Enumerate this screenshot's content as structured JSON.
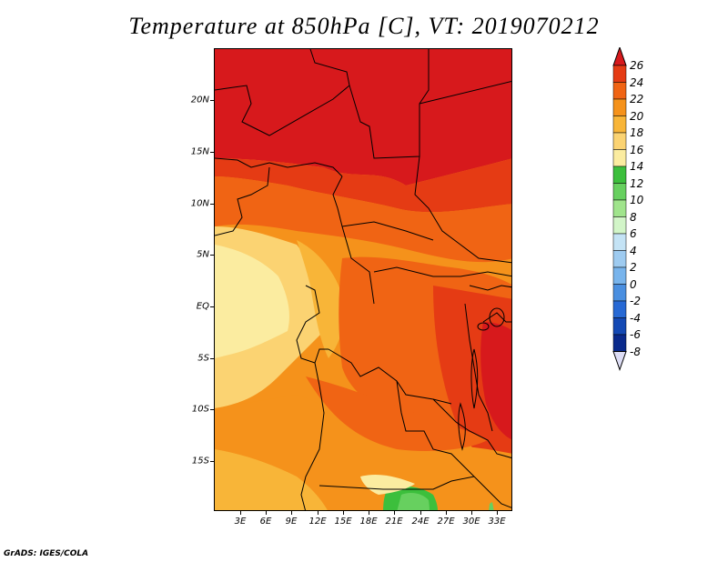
{
  "title": "Temperature at 850hPa [C], VT: 2019070212",
  "credit": "GrADS: IGES/COLA",
  "lat_labels": [
    "20N",
    "15N",
    "10N",
    "5N",
    "EQ",
    "5S",
    "10S",
    "15S"
  ],
  "lon_labels": [
    "3E",
    "6E",
    "9E",
    "12E",
    "15E",
    "18E",
    "21E",
    "24E",
    "27E",
    "30E",
    "33E"
  ],
  "colorbar": {
    "labels": [
      "26",
      "24",
      "22",
      "20",
      "18",
      "16",
      "14",
      "12",
      "10",
      "8",
      "6",
      "4",
      "2",
      "0",
      "-2",
      "-4",
      "-6",
      "-8"
    ],
    "colors": [
      "#d7191c",
      "#e53b14",
      "#f06414",
      "#f5921b",
      "#f8b538",
      "#fbd372",
      "#fbeca0",
      "#3cbf3c",
      "#67d05f",
      "#a0e48c",
      "#d2f5c8",
      "#c4e3f5",
      "#9ecbf0",
      "#78b4ec",
      "#4a8fe0",
      "#2769d4",
      "#1449b4",
      "#0a2a8c",
      "#081a5a"
    ]
  }
}
